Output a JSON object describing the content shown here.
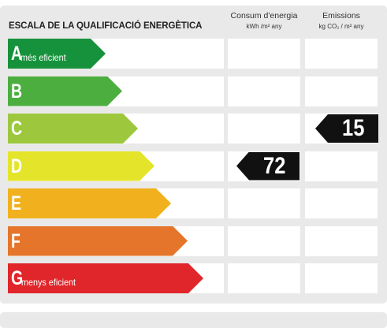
{
  "title": "ESCALA DE LA QUALIFICACIÓ ENERGÈTICA",
  "columns": {
    "consum": {
      "label": "Consum d'energia",
      "unit": "kWh /m²  any"
    },
    "emissions": {
      "label": "Emissions",
      "unit": "kg CO₂  / m²  any"
    }
  },
  "ratings": [
    {
      "letter": "A",
      "label": "més eficient",
      "color": "#17923c"
    },
    {
      "letter": "B",
      "label": "",
      "color": "#4cae3f"
    },
    {
      "letter": "C",
      "label": "",
      "color": "#9dc83e"
    },
    {
      "letter": "D",
      "label": "",
      "color": "#e4e52a"
    },
    {
      "letter": "E",
      "label": "",
      "color": "#f1b11e"
    },
    {
      "letter": "F",
      "label": "",
      "color": "#e4752a"
    },
    {
      "letter": "G",
      "label": "menys eficient",
      "color": "#e0262a"
    }
  ],
  "consumption": {
    "value": "72",
    "rating": "D"
  },
  "emissions": {
    "value": "15",
    "rating": "C"
  }
}
